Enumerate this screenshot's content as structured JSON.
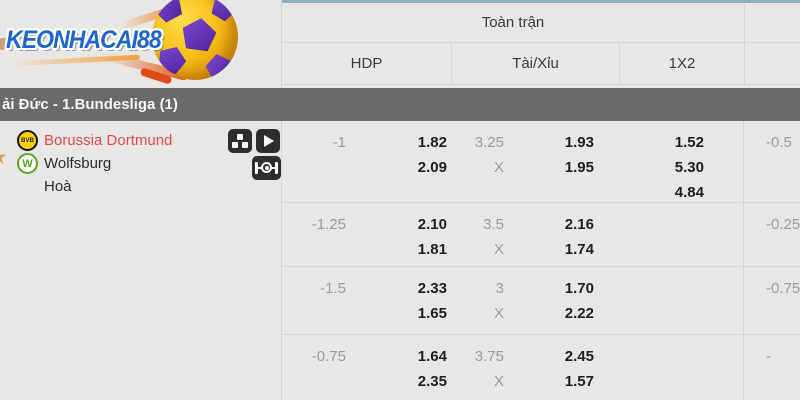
{
  "colors": {
    "accent_teal": "#8fb0bc",
    "league_bar_gray": "#6a6a6a",
    "home_team_red": "#e24b4b",
    "bvb_badge_yellow": "#ffd200",
    "wolfsburg_badge_green": "#57a524",
    "favorite_star_orange": "#d9a15e",
    "logo_blue": "#1f66cc"
  },
  "logo": {
    "text": "KEONHACAI88"
  },
  "header": {
    "full_match_label": "Toàn trận",
    "columns": [
      "HDP",
      "Tài/Xỉu",
      "1X2"
    ]
  },
  "league_bar": {
    "text": "ải Đức - 1.Bundesliga (1)"
  },
  "match": {
    "home": "Borussia Dortmund",
    "away": "Wolfsburg",
    "draw_label": "Hoà",
    "home_badge": "BVB",
    "away_badge": "W",
    "icons": [
      "stats-icon",
      "play-icon",
      "pitch-icon"
    ]
  },
  "rows": [
    {
      "hdp": "-1",
      "hdp_home": "1.82",
      "hdp_away": "2.09",
      "ou_line": "3.25",
      "ou_x": "X",
      "ou_over": "1.93",
      "ou_under": "1.95",
      "x2_1": "1.52",
      "x2_x": "5.30",
      "x2_2": "4.84",
      "next_hdp": "-0.5"
    },
    {
      "hdp": "-1.25",
      "hdp_home": "2.10",
      "hdp_away": "1.81",
      "ou_line": "3.5",
      "ou_x": "X",
      "ou_over": "2.16",
      "ou_under": "1.74",
      "next_hdp": "-0.25"
    },
    {
      "hdp": "-1.5",
      "hdp_home": "2.33",
      "hdp_away": "1.65",
      "ou_line": "3",
      "ou_x": "X",
      "ou_over": "1.70",
      "ou_under": "2.22",
      "next_hdp": "-0.75"
    },
    {
      "hdp": "-0.75",
      "hdp_home": "1.64",
      "hdp_away": "2.35",
      "ou_line": "3.75",
      "ou_x": "X",
      "ou_over": "2.45",
      "ou_under": "1.57",
      "next_hdp": "-"
    }
  ]
}
